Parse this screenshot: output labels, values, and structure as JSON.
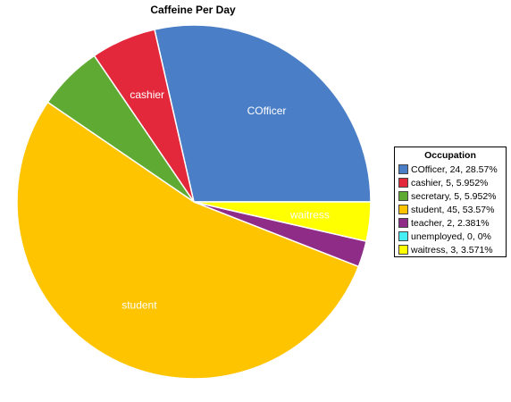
{
  "chart_data": {
    "type": "pie",
    "title": "Caffeine Per Day",
    "legend_title": "Occupation",
    "legend_position": "right",
    "slices": [
      {
        "label": "COfficer",
        "value": 24,
        "percent": "28.57%",
        "color": "#4A7EC6",
        "slice_label": "COfficer"
      },
      {
        "label": "cashier",
        "value": 5,
        "percent": "5.952%",
        "color": "#E3283C",
        "slice_label": "cashier"
      },
      {
        "label": "secretary",
        "value": 5,
        "percent": "5.952%",
        "color": "#5FAA33",
        "slice_label": ""
      },
      {
        "label": "student",
        "value": 45,
        "percent": "53.57%",
        "color": "#FFC400",
        "slice_label": "student"
      },
      {
        "label": "teacher",
        "value": 2,
        "percent": "2.381%",
        "color": "#8E2C88",
        "slice_label": ""
      },
      {
        "label": "unemployed",
        "value": 0,
        "percent": "0%",
        "color": "#44EEF2",
        "slice_label": ""
      },
      {
        "label": "waitress",
        "value": 3,
        "percent": "3.571%",
        "color": "#FFFF00",
        "slice_label": "waitress"
      }
    ],
    "legend_entries": [
      "COfficer, 24, 28.57%",
      "cashier, 5, 5.952%",
      "secretary, 5, 5.952%",
      "student, 45, 53.57%",
      "teacher, 2, 2.381%",
      "unemployed, 0, 0%",
      "waitress, 3, 3.571%"
    ]
  }
}
